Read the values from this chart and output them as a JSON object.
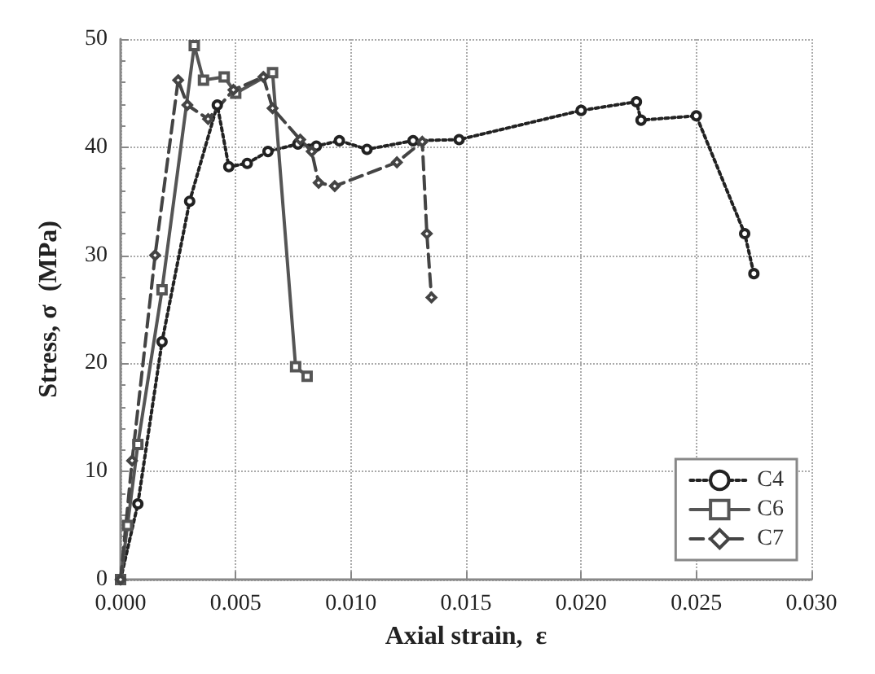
{
  "chart_data": {
    "type": "line",
    "xlabel": "Axial strain,  ε",
    "ylabel": "Stress, σ  (MPa)",
    "xlim": [
      0,
      0.03
    ],
    "ylim": [
      0,
      50
    ],
    "xticks": [
      {
        "value": 0,
        "label": "0.000"
      },
      {
        "value": 0.005,
        "label": "0.005"
      },
      {
        "value": 0.01,
        "label": "0.010"
      },
      {
        "value": 0.015,
        "label": "0.015"
      },
      {
        "value": 0.02,
        "label": "0.020"
      },
      {
        "value": 0.025,
        "label": "0.025"
      },
      {
        "value": 0.03,
        "label": "0.030"
      }
    ],
    "yticks": [
      0,
      10,
      20,
      30,
      40,
      50
    ],
    "grid": true,
    "legend": "bottom right",
    "series": [
      {
        "name": "C4",
        "color": "#222222",
        "marker": "circle",
        "line_style": "dotted",
        "x": [
          0,
          0.00075,
          0.0018,
          0.003,
          0.0042,
          0.0047,
          0.0055,
          0.0064,
          0.0077,
          0.0085,
          0.0095,
          0.0107,
          0.0127,
          0.0147,
          0.02,
          0.0224,
          0.0226,
          0.025,
          0.0271,
          0.0275
        ],
        "values": [
          0,
          7,
          22,
          35,
          43.9,
          38.2,
          38.5,
          39.6,
          40.3,
          40.1,
          40.6,
          39.8,
          40.6,
          40.7,
          43.4,
          44.2,
          42.5,
          42.9,
          32,
          28.3
        ]
      },
      {
        "name": "C6",
        "color": "#555555",
        "marker": "square",
        "line_style": "solid",
        "x": [
          0,
          0.0003,
          0.00075,
          0.0018,
          0.0032,
          0.0036,
          0.0045,
          0.005,
          0.0066,
          0.0076,
          0.0081
        ],
        "values": [
          0,
          5,
          12.5,
          26.8,
          49.4,
          46.2,
          46.5,
          45,
          46.9,
          19.7,
          18.8
        ]
      },
      {
        "name": "C7",
        "color": "#444444",
        "marker": "diamond",
        "line_style": "dashed",
        "x": [
          0,
          0.0005,
          0.0015,
          0.0025,
          0.0029,
          0.0038,
          0.0049,
          0.0062,
          0.0066,
          0.0078,
          0.0083,
          0.0086,
          0.0093,
          0.012,
          0.0131,
          0.0133,
          0.0135
        ],
        "values": [
          0,
          11,
          30,
          46.2,
          43.9,
          42.6,
          45.3,
          46.5,
          43.6,
          40.7,
          39.6,
          36.7,
          36.4,
          38.6,
          40.5,
          32,
          26.1
        ]
      }
    ]
  }
}
